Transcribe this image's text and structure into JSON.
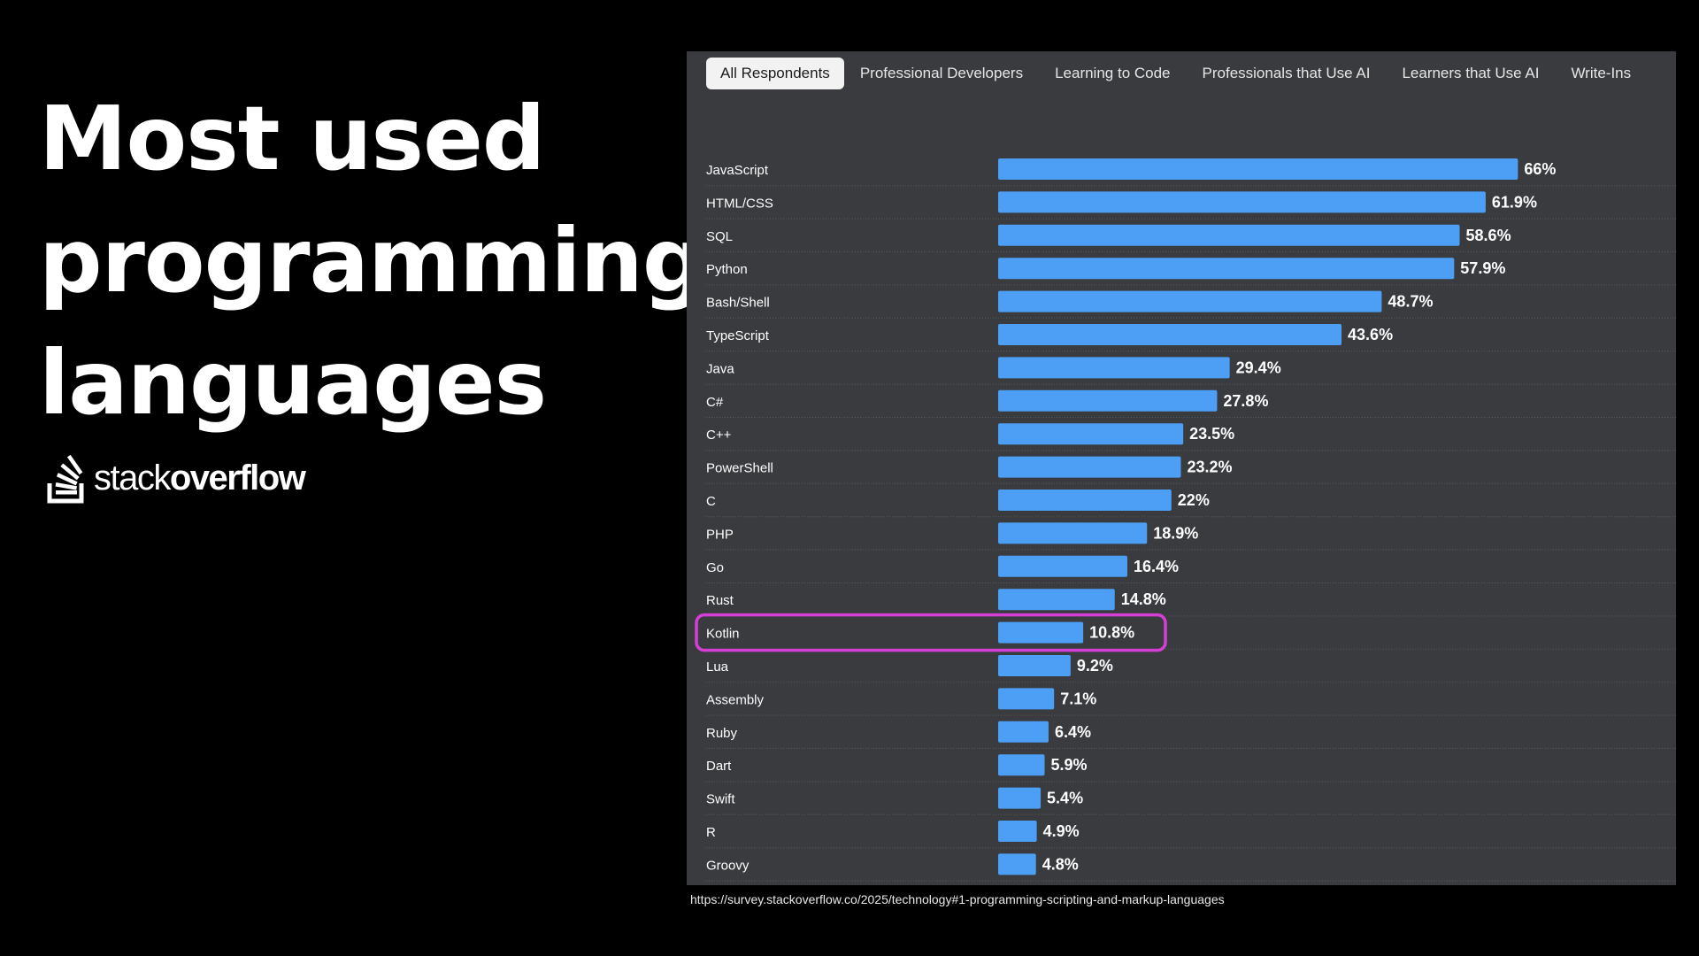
{
  "headline": {
    "line1": "Most used",
    "line2": "programming",
    "line3": "languages"
  },
  "logo": {
    "icon": "stackoverflow-logo-icon",
    "text_light": "stack",
    "text_bold": "overflow"
  },
  "tabs": [
    {
      "label": "All Respondents",
      "active": true
    },
    {
      "label": "Professional Developers",
      "active": false
    },
    {
      "label": "Learning to Code",
      "active": false
    },
    {
      "label": "Professionals that Use AI",
      "active": false
    },
    {
      "label": "Learners that Use AI",
      "active": false
    },
    {
      "label": "Write-Ins",
      "active": false
    }
  ],
  "colors": {
    "bar": "#4c9ff5",
    "panel": "#393b3f",
    "highlight": "#d63fd6",
    "divider": "#55585d"
  },
  "chart_data": {
    "type": "bar",
    "orientation": "horizontal",
    "categories": [
      "JavaScript",
      "HTML/CSS",
      "SQL",
      "Python",
      "Bash/Shell",
      "TypeScript",
      "Java",
      "C#",
      "C++",
      "PowerShell",
      "C",
      "PHP",
      "Go",
      "Rust",
      "Kotlin",
      "Lua",
      "Assembly",
      "Ruby",
      "Dart",
      "Swift",
      "R",
      "Groovy"
    ],
    "values": [
      66,
      61.9,
      58.6,
      57.9,
      48.7,
      43.6,
      29.4,
      27.8,
      23.5,
      23.2,
      22,
      18.9,
      16.4,
      14.8,
      10.8,
      9.2,
      7.1,
      6.4,
      5.9,
      5.4,
      4.9,
      4.8
    ],
    "value_labels": [
      "66%",
      "61.9%",
      "58.6%",
      "57.9%",
      "48.7%",
      "43.6%",
      "29.4%",
      "27.8%",
      "23.5%",
      "23.2%",
      "22%",
      "18.9%",
      "16.4%",
      "14.8%",
      "10.8%",
      "9.2%",
      "7.1%",
      "6.4%",
      "5.9%",
      "5.4%",
      "4.9%",
      "4.8%"
    ],
    "highlighted_category": "Kotlin",
    "xlim": [
      0,
      100
    ],
    "grid": false,
    "legend": "none"
  },
  "source": {
    "url": "https://survey.stackoverflow.co/2025/technology#1-programming-scripting-and-markup-languages"
  }
}
